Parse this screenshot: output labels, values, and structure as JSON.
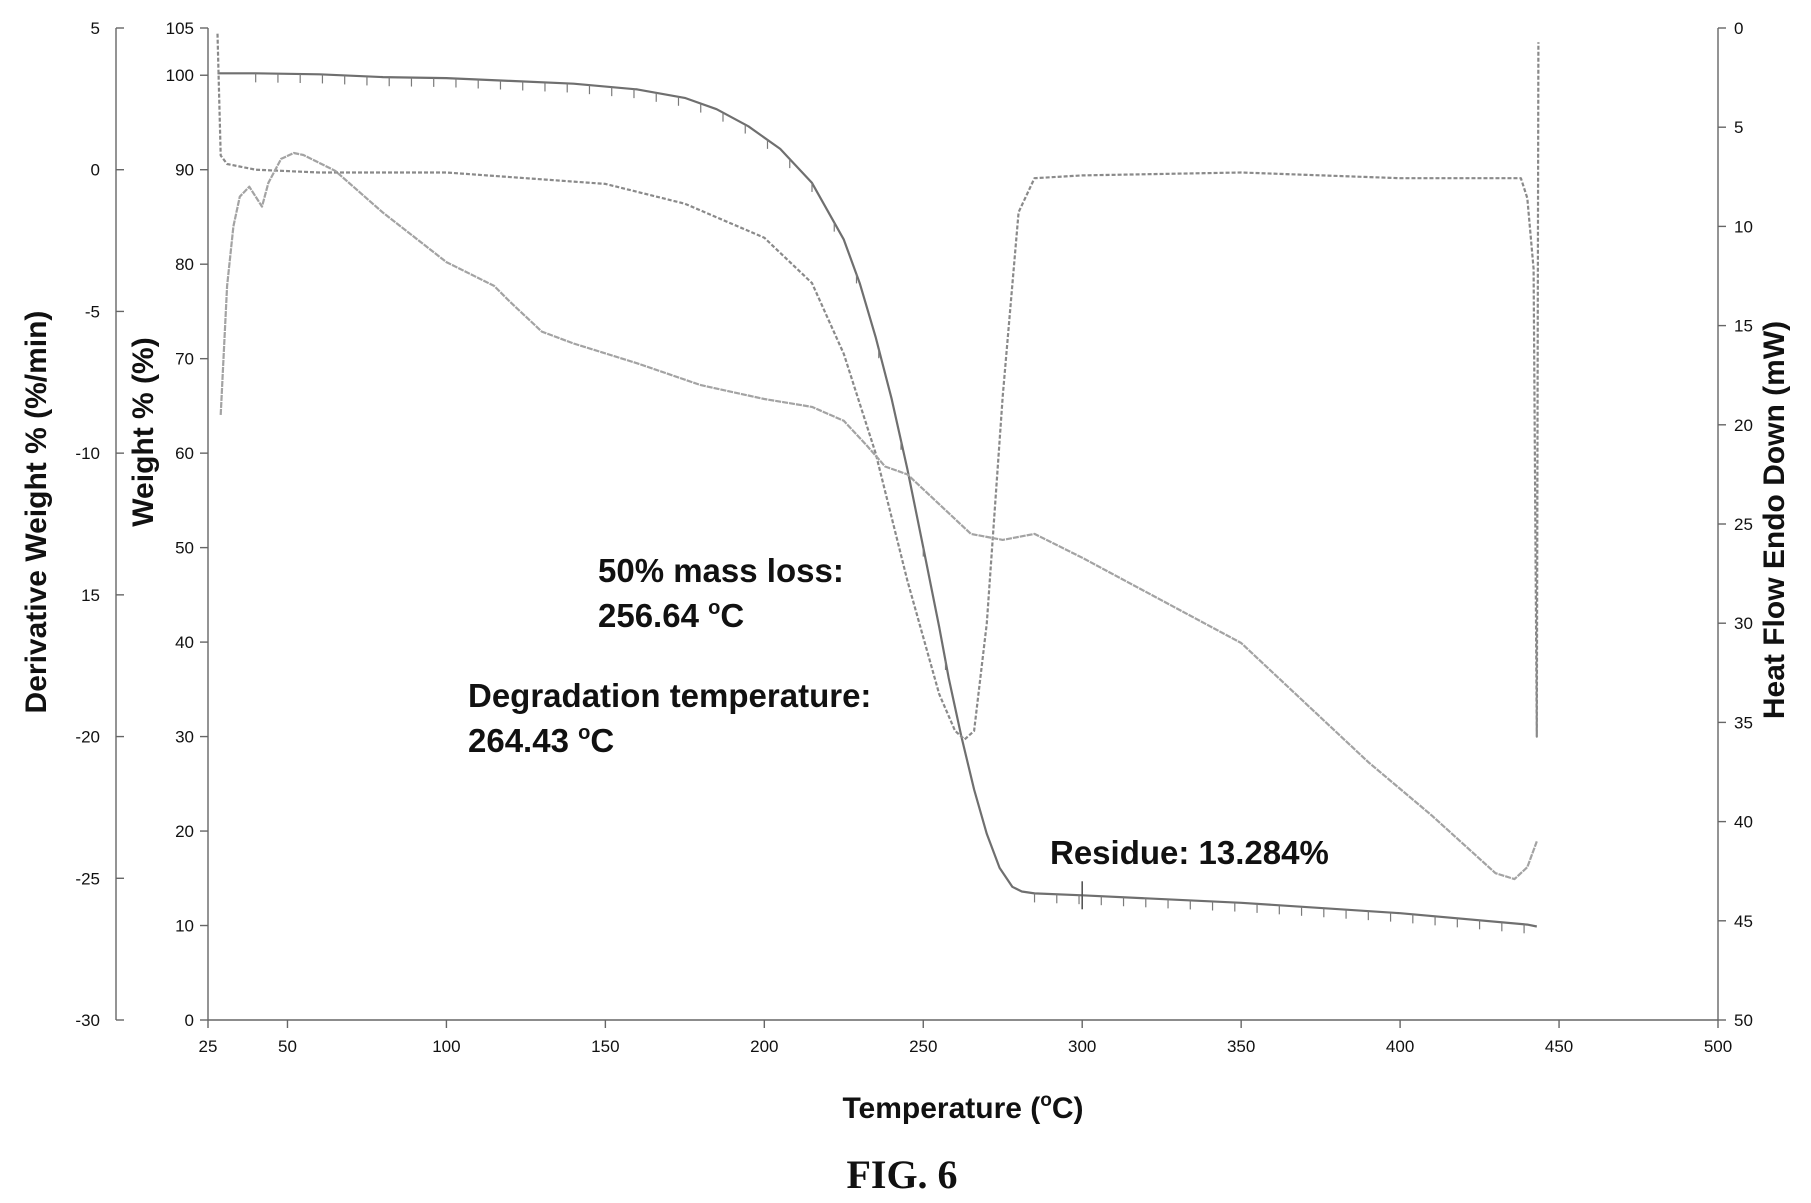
{
  "caption": "FIG. 6",
  "chart_data": {
    "type": "line",
    "xlabel": "Temperature (oC)",
    "xlabel_main": "Temperature (",
    "xlabel_super": "o",
    "xlabel_end": "C)",
    "xlim": [
      25,
      500
    ],
    "xticks": [
      25,
      50,
      100,
      150,
      200,
      250,
      300,
      350,
      400,
      450,
      500
    ],
    "y_weight": {
      "label": "Weight % (%)",
      "lim": [
        0,
        105
      ],
      "ticks": [
        0,
        10,
        20,
        30,
        40,
        50,
        60,
        70,
        80,
        90,
        100,
        105
      ]
    },
    "y_derivative": {
      "label": "Derivative Weight % (%/min)",
      "lim": [
        -30,
        5
      ],
      "tick_values": [
        -30,
        -25,
        -20,
        -15,
        -10,
        -5,
        0,
        5
      ],
      "tick_labels": [
        "-30",
        "-25",
        "-20",
        "15",
        "-10",
        "-5",
        "0",
        "5"
      ]
    },
    "y_heatflow": {
      "label": "Heat Flow Endo Down (mW)",
      "lim": [
        0,
        50
      ],
      "inverted": true,
      "ticks": [
        0,
        5,
        10,
        15,
        20,
        25,
        30,
        35,
        40,
        45,
        50
      ]
    },
    "series": [
      {
        "axis": "weight",
        "color": "#6f6f6f",
        "x": [
          28,
          40,
          60,
          80,
          100,
          120,
          140,
          160,
          175,
          185,
          195,
          205,
          215,
          225,
          230,
          235,
          240,
          245,
          250,
          255,
          258,
          262,
          266,
          270,
          274,
          278,
          281,
          285,
          300,
          350,
          400,
          440,
          443
        ],
        "y": [
          100.2,
          100.2,
          100.1,
          99.8,
          99.7,
          99.4,
          99.1,
          98.5,
          97.6,
          96.4,
          94.6,
          92.2,
          88.6,
          82.6,
          78.0,
          72.3,
          65.8,
          58.3,
          50.0,
          41.6,
          36.2,
          30.0,
          24.4,
          19.7,
          16.1,
          14.1,
          13.6,
          13.4,
          13.2,
          12.4,
          11.3,
          10.1,
          9.9
        ]
      },
      {
        "axis": "derivative",
        "color": "#8a8a8a",
        "x": [
          28,
          29,
          31,
          40,
          60,
          100,
          150,
          175,
          200,
          215,
          225,
          235,
          245,
          255,
          260,
          263,
          266,
          270,
          275,
          280,
          285,
          300,
          350,
          400,
          438,
          440,
          442,
          443,
          443.5
        ],
        "y": [
          4.8,
          0.5,
          0.2,
          0.0,
          -0.1,
          -0.1,
          -0.5,
          -1.2,
          -2.4,
          -4.0,
          -6.5,
          -10.0,
          -14.5,
          -18.5,
          -19.8,
          -20.1,
          -19.8,
          -16.0,
          -8.0,
          -1.5,
          -0.3,
          -0.2,
          -0.1,
          -0.3,
          -0.3,
          -1.0,
          -3.5,
          -20.0,
          4.5
        ]
      },
      {
        "axis": "heatflow",
        "color": "#a3a3a3",
        "x": [
          29,
          31,
          33,
          35,
          38,
          42,
          44,
          48,
          52,
          55,
          65,
          80,
          100,
          115,
          120,
          130,
          140,
          160,
          180,
          200,
          215,
          225,
          232,
          238,
          245,
          255,
          265,
          275,
          285,
          300,
          350,
          390,
          410,
          430,
          436,
          440,
          443
        ],
        "y": [
          19.5,
          13,
          10,
          8.5,
          8.0,
          9.0,
          7.8,
          6.6,
          6.3,
          6.4,
          7.2,
          9.3,
          11.8,
          13.0,
          13.8,
          15.3,
          15.9,
          16.9,
          18.0,
          18.7,
          19.1,
          19.8,
          21.0,
          22.1,
          22.5,
          24.0,
          25.5,
          25.8,
          25.5,
          26.7,
          31.0,
          37.0,
          39.7,
          42.6,
          42.9,
          42.3,
          41.0
        ]
      }
    ],
    "annotations": [
      {
        "line1": "50% mass loss:",
        "line2_value": "256.64 ",
        "line2_super": "o",
        "line2_unit": "C"
      },
      {
        "line1": "Degradation temperature:",
        "line2_value": "264.43 ",
        "line2_super": "o",
        "line2_unit": "C"
      },
      {
        "line1": "Residue: 13.284%"
      }
    ]
  }
}
